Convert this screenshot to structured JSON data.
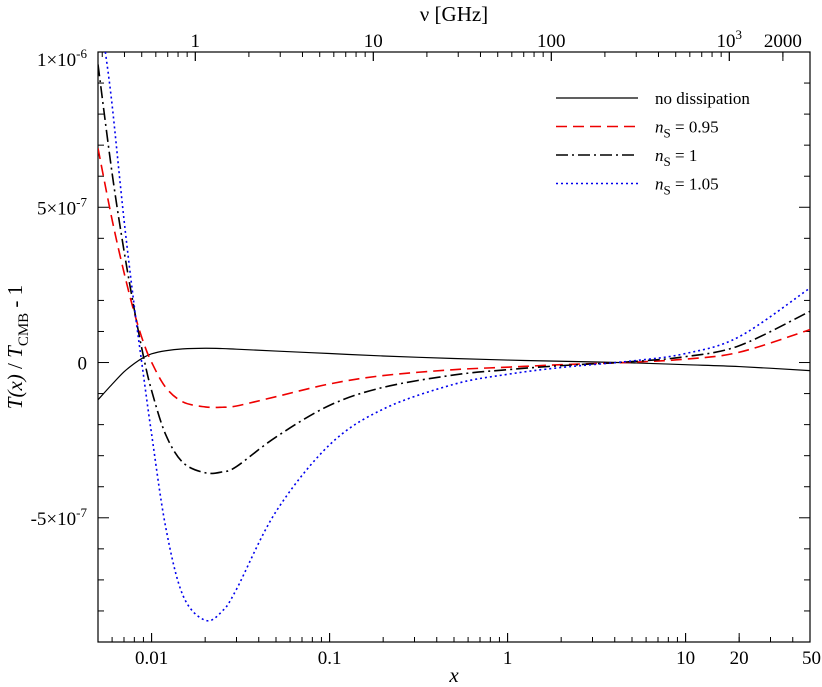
{
  "chart_data": {
    "type": "line",
    "title": "",
    "xlabel": "x",
    "ylabel_parts": [
      "T(x)",
      " / ",
      "T",
      "CMB",
      " - 1"
    ],
    "top_xlabel": "ν  [GHz]",
    "xscale": "log",
    "xlim": [
      0.005,
      50
    ],
    "ylim": [
      -9e-07,
      1e-06
    ],
    "ghz_per_x": 56.8,
    "x_ticks": [
      {
        "value": 0.01,
        "label": "0.01"
      },
      {
        "value": 0.1,
        "label": "0.1"
      },
      {
        "value": 1,
        "label": "1"
      },
      {
        "value": 10,
        "label": "10"
      },
      {
        "value": 20,
        "label": "20"
      },
      {
        "value": 50,
        "label": "50"
      }
    ],
    "top_ticks": [
      {
        "value": 1,
        "label": "1"
      },
      {
        "value": 10,
        "label": "10"
      },
      {
        "value": 100,
        "label": "100"
      },
      {
        "value": 1000,
        "label": "10",
        "sup": "3"
      },
      {
        "value": 2000,
        "label": "2000"
      }
    ],
    "y_ticks": [
      {
        "value": 1e-06,
        "label": "1×10",
        "sup": "-6"
      },
      {
        "value": 5e-07,
        "label": "5×10",
        "sup": "-7"
      },
      {
        "value": 0,
        "label": "0"
      },
      {
        "value": -5e-07,
        "label": "-5×10",
        "sup": "-7"
      }
    ],
    "legend_position": "top-right",
    "series": [
      {
        "name": "no dissipation",
        "legend_main": "no dissipation",
        "legend_sub": "",
        "legend_tail": "",
        "color": "#000000",
        "dash": "",
        "x": [
          0.005,
          0.006,
          0.007,
          0.008,
          0.009,
          0.01,
          0.012,
          0.015,
          0.02,
          0.025,
          0.03,
          0.05,
          0.1,
          0.2,
          0.5,
          1,
          2,
          5,
          10,
          20,
          50
        ],
        "y": [
          -1.2e-07,
          -7e-08,
          -3e-08,
          -3e-09,
          1.6e-08,
          2.8e-08,
          3.8e-08,
          4.4e-08,
          4.6e-08,
          4.5e-08,
          4.3e-08,
          3.7e-08,
          2.9e-08,
          2.1e-08,
          1.3e-08,
          8e-09,
          4e-09,
          -1e-09,
          -7e-09,
          -1.3e-08,
          -2.6e-08
        ]
      },
      {
        "name": "nS = 0.95",
        "legend_main": "n",
        "legend_sub": "S",
        "legend_tail": " = 0.95",
        "color": "#ee0000",
        "dash": "11,6",
        "x": [
          0.005,
          0.006,
          0.007,
          0.008,
          0.009,
          0.01,
          0.012,
          0.015,
          0.02,
          0.025,
          0.03,
          0.05,
          0.1,
          0.2,
          0.5,
          1,
          2,
          5,
          10,
          20,
          50
        ],
        "y": [
          6.9e-07,
          4.6e-07,
          2.9e-07,
          1.6e-07,
          6.5e-08,
          1e-09,
          -8e-08,
          -1.27e-07,
          -1.43e-07,
          -1.44e-07,
          -1.4e-07,
          -1.1e-07,
          -6.9e-08,
          -4.2e-08,
          -2.3e-08,
          -1.5e-08,
          -7e-09,
          1e-09,
          1.1e-08,
          3.3e-08,
          1.06e-07
        ]
      },
      {
        "name": "nS = 1",
        "legend_main": "n",
        "legend_sub": "S",
        "legend_tail": " = 1",
        "color": "#000000",
        "dash": "12,4,2,4",
        "x": [
          0.005,
          0.006,
          0.007,
          0.008,
          0.009,
          0.01,
          0.012,
          0.015,
          0.02,
          0.025,
          0.03,
          0.05,
          0.1,
          0.2,
          0.5,
          1,
          2,
          5,
          10,
          20,
          50
        ],
        "y": [
          9.6e-07,
          6.1e-07,
          3.6e-07,
          1.7e-07,
          2e-08,
          -9e-08,
          -2.32e-07,
          -3.22e-07,
          -3.55e-07,
          -3.52e-07,
          -3.35e-07,
          -2.4e-07,
          -1.38e-07,
          -8e-08,
          -4e-08,
          -2.3e-08,
          -1e-08,
          3e-09,
          1.9e-08,
          5.4e-08,
          1.65e-07
        ]
      },
      {
        "name": "nS = 1.05",
        "legend_main": "n",
        "legend_sub": "S",
        "legend_tail": " = 1.05",
        "color": "#0000ee",
        "dash": "2,3",
        "x": [
          0.0055,
          0.006,
          0.007,
          0.008,
          0.009,
          0.01,
          0.012,
          0.015,
          0.02,
          0.025,
          0.03,
          0.05,
          0.1,
          0.2,
          0.5,
          1,
          2,
          5,
          10,
          20,
          50
        ],
        "y": [
          1e-06,
          8.3e-07,
          4.6e-07,
          1.8e-07,
          -4e-08,
          -2.3e-07,
          -5.3e-07,
          -7.5e-07,
          -8.3e-07,
          -8e-07,
          -7.3e-07,
          -4.8e-07,
          -2.65e-07,
          -1.5e-07,
          -7e-08,
          -3.8e-08,
          -1.6e-08,
          5e-09,
          2.9e-08,
          8.3e-08,
          2.4e-07
        ]
      }
    ]
  }
}
